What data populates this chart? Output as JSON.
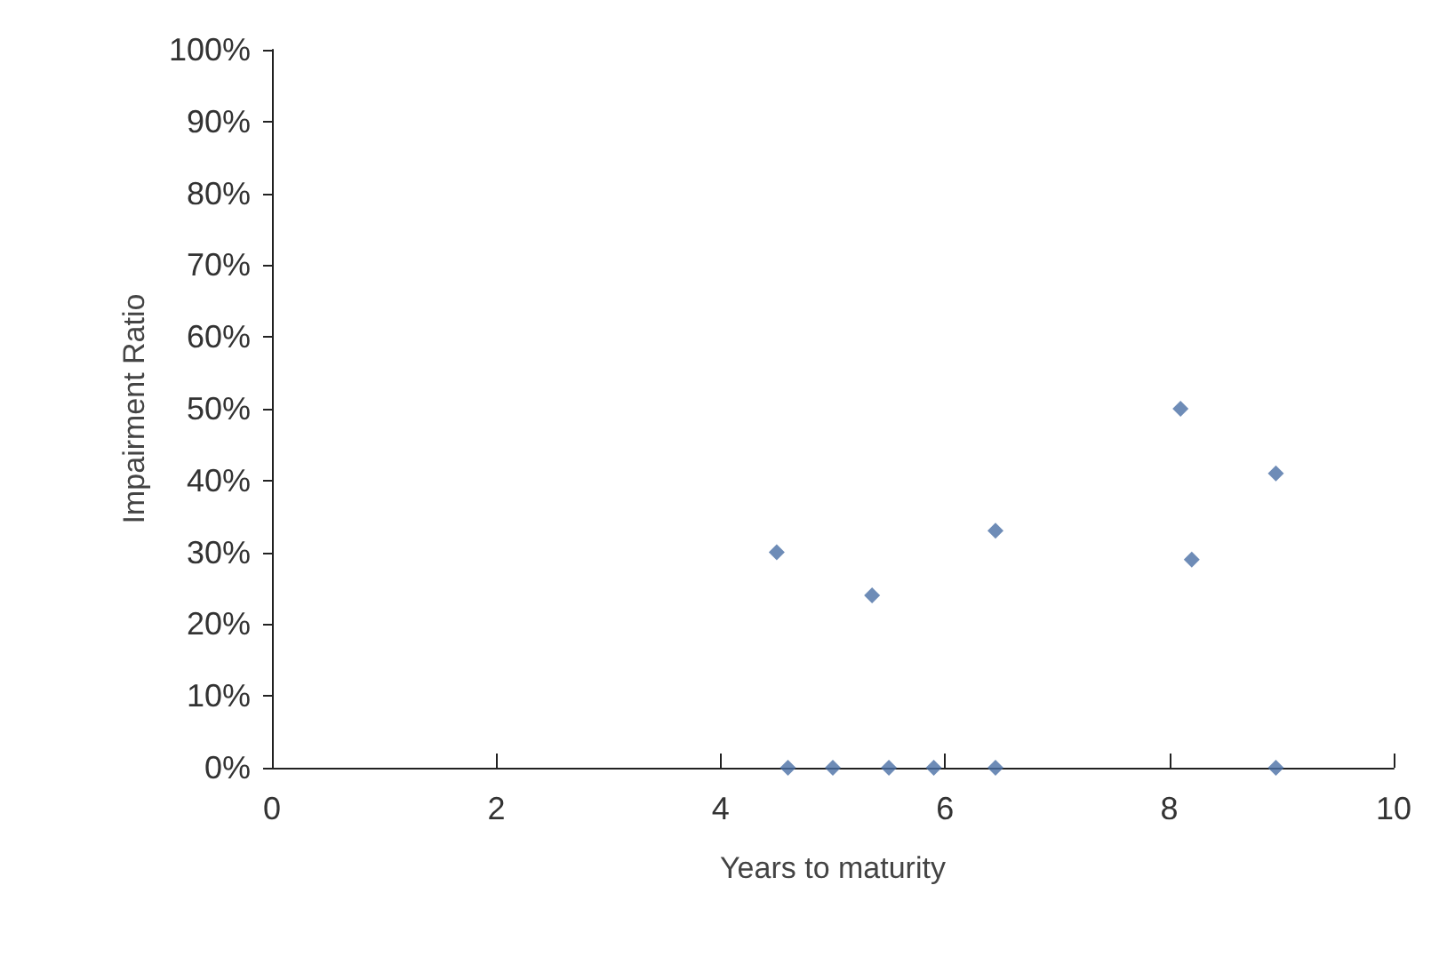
{
  "chart_data": {
    "type": "scatter",
    "xlabel": "Years to maturity",
    "ylabel": "Impairment Ratio",
    "x": [
      4.5,
      4.6,
      5.0,
      5.35,
      5.5,
      5.9,
      6.45,
      6.45,
      8.1,
      8.2,
      8.95,
      8.95
    ],
    "series": [
      {
        "color": "#4a6fa5",
        "values": [
          30,
          0,
          0,
          24,
          0,
          0,
          33,
          0,
          50,
          29,
          41,
          0
        ]
      }
    ],
    "marker": "diamond",
    "grid": false,
    "xlim": [
      0,
      10
    ],
    "xticks": [
      0,
      2,
      4,
      6,
      8,
      10
    ],
    "ylim": [
      0,
      100
    ],
    "yticks": [
      {
        "value": 0,
        "label": "0%"
      },
      {
        "value": 10,
        "label": "10%"
      },
      {
        "value": 20,
        "label": "20%"
      },
      {
        "value": 30,
        "label": "30%"
      },
      {
        "value": 40,
        "label": "40%"
      },
      {
        "value": 50,
        "label": "50%"
      },
      {
        "value": 60,
        "label": "60%"
      },
      {
        "value": 70,
        "label": "70%"
      },
      {
        "value": 80,
        "label": "80%"
      },
      {
        "value": 90,
        "label": "90%"
      },
      {
        "value": 100,
        "label": "100%"
      }
    ]
  }
}
